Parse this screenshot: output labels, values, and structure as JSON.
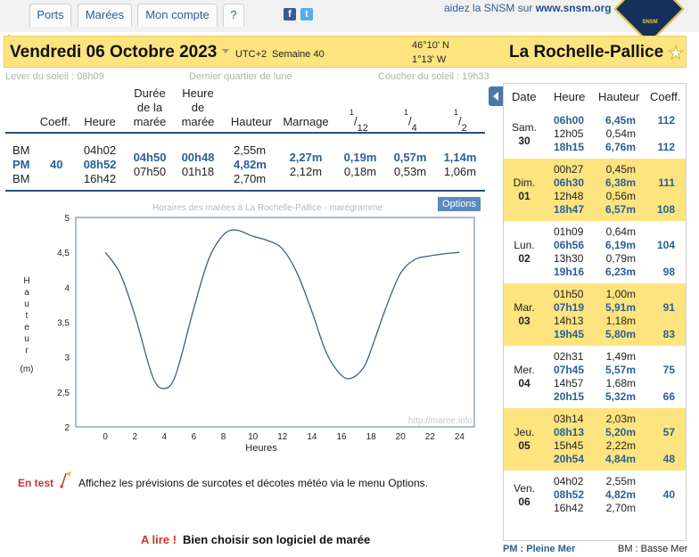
{
  "nav": {
    "tabs": [
      "Ports",
      "Marées",
      "Mon compte",
      "?"
    ],
    "snsm_prefix": "aidez la SNSM sur",
    "snsm_link": "www.snsm.org",
    "snsm_logo_text": "SNSM"
  },
  "header": {
    "date": "Vendredi 06 Octobre 2023",
    "utc": "UTC+2",
    "week": "Semaine 40",
    "lat": "46°10' N",
    "lon": "1°13' W",
    "port": "La Rochelle-Pallice"
  },
  "info": {
    "sunrise": "Lever du soleil : 08h09",
    "moon": "Dernier quartier de lune",
    "sunset": "Coucher du soleil : 19h33"
  },
  "table": {
    "headers": {
      "coeff": "Coeff.",
      "heure": "Heure",
      "duree": [
        "Durée",
        "de la",
        "marée"
      ],
      "heure_maree": [
        "Heure",
        "de",
        "marée"
      ],
      "hauteur": "Hauteur",
      "marnage": "Marnage",
      "f12_num": "1",
      "f12_den": "12",
      "f4_num": "1",
      "f4_den": "4",
      "f2_num": "1",
      "f2_den": "2"
    },
    "types": [
      "BM",
      "PM",
      "BM"
    ],
    "coeff": "40",
    "heures": [
      "04h02",
      "08h52",
      "16h42"
    ],
    "durees": [
      "04h50",
      "07h50"
    ],
    "heures_maree": [
      "00h48",
      "01h18"
    ],
    "hauteurs": [
      "2,55m",
      "4,82m",
      "2,70m"
    ],
    "marnages": [
      "2,27m",
      "2,12m"
    ],
    "f12": [
      "0,19m",
      "0,18m"
    ],
    "f4": [
      "0,57m",
      "0,53m"
    ],
    "f2": [
      "1,14m",
      "1,06m"
    ]
  },
  "chart_data": {
    "type": "line",
    "title": "Horaires des marées à La Rochelle-Pallice - marégramme",
    "xlabel": "Heures",
    "ylabel": "Hauteur (m)",
    "xlim": [
      -2,
      25
    ],
    "ylim": [
      2,
      5
    ],
    "xticks": [
      "0",
      "2",
      "4",
      "6",
      "8",
      "10",
      "12",
      "14",
      "16",
      "18",
      "20",
      "22",
      "24"
    ],
    "yticks": [
      "2",
      "2,5",
      "3",
      "3,5",
      "4",
      "4,5",
      "5"
    ],
    "watermark": "http://maree.info",
    "grid": false,
    "x": [
      0,
      1,
      2,
      3,
      3.5,
      4,
      4.5,
      5,
      6,
      7,
      8,
      8.87,
      10,
      11,
      12,
      13,
      14,
      15,
      16,
      16.7,
      17.5,
      18,
      19,
      20,
      21,
      22,
      23,
      24
    ],
    "y": [
      4.5,
      4.2,
      3.6,
      2.85,
      2.6,
      2.55,
      2.62,
      2.9,
      3.7,
      4.4,
      4.75,
      4.82,
      4.73,
      4.67,
      4.55,
      4.2,
      3.65,
      3.05,
      2.74,
      2.7,
      2.85,
      3.1,
      3.7,
      4.2,
      4.4,
      4.45,
      4.48,
      4.5
    ]
  },
  "en_test": {
    "label": "En test",
    "message": "Affichez les prévisions de surcotes et décotes météo via le menu Options.",
    "options_button": "Options"
  },
  "a_lire": {
    "label": "A lire !",
    "link": "Bien choisir son logiciel de marée"
  },
  "panel": {
    "headers": [
      "Date",
      "Heure",
      "Hauteur",
      "Coeff."
    ],
    "days": [
      {
        "day": "Sam.",
        "num": "30",
        "yellow": false,
        "tides": [
          {
            "t": "06h00",
            "h": "6,45m",
            "c": "112",
            "pm": true
          },
          {
            "t": "12h05",
            "h": "0,54m",
            "c": "",
            "pm": false
          },
          {
            "t": "18h15",
            "h": "6,76m",
            "c": "112",
            "pm": true
          }
        ]
      },
      {
        "day": "Dim.",
        "num": "01",
        "yellow": true,
        "tides": [
          {
            "t": "00h27",
            "h": "0,45m",
            "c": "",
            "pm": false
          },
          {
            "t": "06h30",
            "h": "6,38m",
            "c": "111",
            "pm": true
          },
          {
            "t": "12h48",
            "h": "0,56m",
            "c": "",
            "pm": false
          },
          {
            "t": "18h47",
            "h": "6,57m",
            "c": "108",
            "pm": true
          }
        ]
      },
      {
        "day": "Lun.",
        "num": "02",
        "yellow": false,
        "tides": [
          {
            "t": "01h09",
            "h": "0,64m",
            "c": "",
            "pm": false
          },
          {
            "t": "06h56",
            "h": "6,19m",
            "c": "104",
            "pm": true
          },
          {
            "t": "13h30",
            "h": "0,79m",
            "c": "",
            "pm": false
          },
          {
            "t": "19h16",
            "h": "6,23m",
            "c": "98",
            "pm": true
          }
        ]
      },
      {
        "day": "Mar.",
        "num": "03",
        "yellow": true,
        "tides": [
          {
            "t": "01h50",
            "h": "1,00m",
            "c": "",
            "pm": false
          },
          {
            "t": "07h19",
            "h": "5,91m",
            "c": "91",
            "pm": true
          },
          {
            "t": "14h13",
            "h": "1,18m",
            "c": "",
            "pm": false
          },
          {
            "t": "19h45",
            "h": "5,80m",
            "c": "83",
            "pm": true
          }
        ]
      },
      {
        "day": "Mer.",
        "num": "04",
        "yellow": false,
        "tides": [
          {
            "t": "02h31",
            "h": "1,49m",
            "c": "",
            "pm": false
          },
          {
            "t": "07h45",
            "h": "5,57m",
            "c": "75",
            "pm": true
          },
          {
            "t": "14h57",
            "h": "1,68m",
            "c": "",
            "pm": false
          },
          {
            "t": "20h15",
            "h": "5,32m",
            "c": "66",
            "pm": true
          }
        ]
      },
      {
        "day": "Jeu.",
        "num": "05",
        "yellow": true,
        "tides": [
          {
            "t": "03h14",
            "h": "2,03m",
            "c": "",
            "pm": false
          },
          {
            "t": "08h13",
            "h": "5,20m",
            "c": "57",
            "pm": true
          },
          {
            "t": "15h45",
            "h": "2,22m",
            "c": "",
            "pm": false
          },
          {
            "t": "20h54",
            "h": "4,84m",
            "c": "48",
            "pm": true
          }
        ]
      },
      {
        "day": "Ven.",
        "num": "06",
        "yellow": false,
        "tides": [
          {
            "t": "04h02",
            "h": "2,55m",
            "c": "",
            "pm": false
          },
          {
            "t": "08h52",
            "h": "4,82m",
            "c": "40",
            "pm": true
          },
          {
            "t": "16h42",
            "h": "2,70m",
            "c": "",
            "pm": false
          }
        ]
      }
    ],
    "legend_pm": "PM : Pleine Mer",
    "legend_bm": "BM : Basse Mer"
  },
  "colors": {
    "accent": "#2a5f96",
    "yellow": "#fde47f",
    "curve": "#3a5f8c",
    "red": "#c0392b"
  }
}
